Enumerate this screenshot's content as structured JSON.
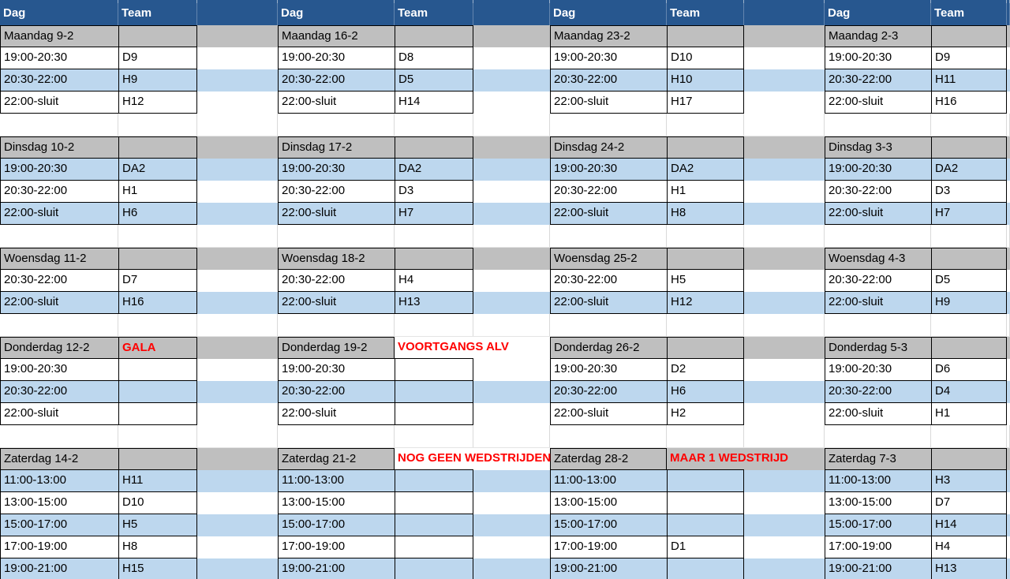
{
  "columns": {
    "dag": "Dag",
    "team": "Team"
  },
  "colors": {
    "header_blue": "#27578F",
    "day_gray": "#BFBFBF",
    "band_blue": "#BDD7EE",
    "band_white": "#FFFFFF",
    "border_black": "#000000",
    "note_red": "#FF0000",
    "gridline": "#D9D9D9"
  },
  "layout_days": [
    {
      "slots": [
        "19:00-20:30",
        "20:30-22:00",
        "22:00-sluit"
      ],
      "shades": [
        "white",
        "blue",
        "white"
      ]
    },
    {
      "slots": [
        "19:00-20:30",
        "20:30-22:00",
        "22:00-sluit"
      ],
      "shades": [
        "blue",
        "white",
        "blue"
      ]
    },
    {
      "slots": [
        "20:30-22:00",
        "22:00-sluit"
      ],
      "shades": [
        "white",
        "blue"
      ]
    },
    {
      "slots": [
        "19:00-20:30",
        "20:30-22:00",
        "22:00-sluit"
      ],
      "shades": [
        "white",
        "blue",
        "white"
      ]
    },
    {
      "slots": [
        "11:00-13:00",
        "13:00-15:00",
        "15:00-17:00",
        "17:00-19:00",
        "19:00-21:00"
      ],
      "shades": [
        "blue",
        "white",
        "blue",
        "white",
        "blue"
      ]
    }
  ],
  "weeks": [
    {
      "days": [
        {
          "title": "Maandag 9-2",
          "note": "",
          "note_style": "",
          "teams": [
            "D9",
            "H9",
            "H12"
          ]
        },
        {
          "title": "Dinsdag 10-2",
          "note": "",
          "note_style": "",
          "teams": [
            "DA2",
            "H1",
            "H6"
          ]
        },
        {
          "title": "Woensdag 11-2",
          "note": "",
          "note_style": "",
          "teams": [
            "D7",
            "H16"
          ]
        },
        {
          "title": "Donderdag 12-2",
          "note": "GALA",
          "note_style": "in-cell",
          "teams": [
            "",
            "",
            ""
          ]
        },
        {
          "title": "Zaterdag 14-2",
          "note": "",
          "note_style": "",
          "teams": [
            "H11",
            "D10",
            "H5",
            "H8",
            "H15"
          ]
        }
      ]
    },
    {
      "days": [
        {
          "title": "Maandag 16-2",
          "note": "",
          "note_style": "",
          "teams": [
            "D8",
            "D5",
            "H14"
          ]
        },
        {
          "title": "Dinsdag 17-2",
          "note": "",
          "note_style": "",
          "teams": [
            "DA2",
            "D3",
            "H7"
          ]
        },
        {
          "title": "Woensdag 18-2",
          "note": "",
          "note_style": "",
          "teams": [
            "H4",
            "H13"
          ]
        },
        {
          "title": "Donderdag 19-2",
          "note": "VOORTGANGS ALV",
          "note_style": "overflow-white",
          "teams": [
            "",
            "",
            ""
          ]
        },
        {
          "title": "Zaterdag 21-2",
          "note": "NOG GEEN WEDSTRIJDEN",
          "note_style": "overflow-white",
          "teams": [
            "",
            "",
            "",
            "",
            ""
          ]
        }
      ]
    },
    {
      "days": [
        {
          "title": "Maandag 23-2",
          "note": "",
          "note_style": "",
          "teams": [
            "D10",
            "H10",
            "H17"
          ]
        },
        {
          "title": "Dinsdag 24-2",
          "note": "",
          "note_style": "",
          "teams": [
            "DA2",
            "H1",
            "H8"
          ]
        },
        {
          "title": "Woensdag 25-2",
          "note": "",
          "note_style": "",
          "teams": [
            "H5",
            "H12"
          ]
        },
        {
          "title": "Donderdag 26-2",
          "note": "",
          "note_style": "",
          "teams": [
            "D2",
            "H6",
            "H2"
          ]
        },
        {
          "title": "Zaterdag 28-2",
          "note": "MAAR 1 WEDSTRIJD",
          "note_style": "overflow-gray",
          "teams": [
            "",
            "",
            "",
            "D1",
            ""
          ]
        }
      ]
    },
    {
      "days": [
        {
          "title": "Maandag 2-3",
          "note": "",
          "note_style": "",
          "teams": [
            "D9",
            "H11",
            "H16"
          ]
        },
        {
          "title": "Dinsdag 3-3",
          "note": "",
          "note_style": "",
          "teams": [
            "DA2",
            "D3",
            "H7"
          ]
        },
        {
          "title": "Woensdag 4-3",
          "note": "",
          "note_style": "",
          "teams": [
            "D5",
            "H9"
          ]
        },
        {
          "title": "Donderdag 5-3",
          "note": "",
          "note_style": "",
          "teams": [
            "D6",
            "D4",
            "H1"
          ]
        },
        {
          "title": "Zaterdag 7-3",
          "note": "",
          "note_style": "",
          "teams": [
            "H3",
            "D7",
            "H14",
            "H4",
            "H13"
          ]
        }
      ]
    }
  ]
}
